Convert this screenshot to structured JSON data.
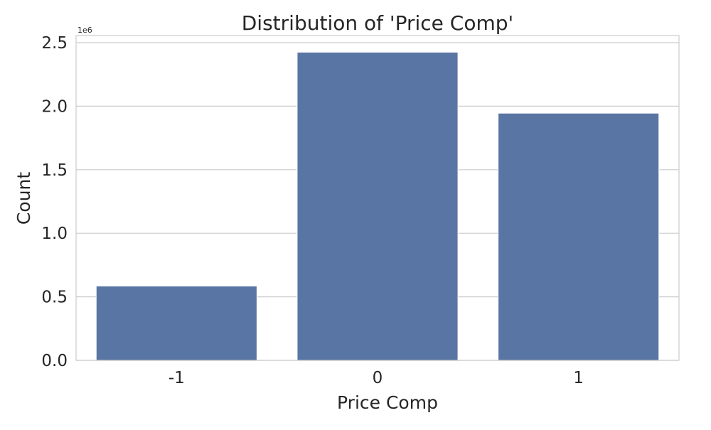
{
  "chart_data": {
    "type": "bar",
    "title": "Distribution of 'Price Comp'",
    "xlabel": "Price Comp",
    "ylabel": "Count",
    "categories": [
      "-1",
      "0",
      "1"
    ],
    "values": [
      585000,
      2425000,
      1945000
    ],
    "ylim": [
      0,
      2580000
    ],
    "scale_label": "1e6",
    "yticks": [
      {
        "value": 0,
        "label": "0.0"
      },
      {
        "value": 500000,
        "label": "0.5"
      },
      {
        "value": 1000000,
        "label": "1.0"
      },
      {
        "value": 1500000,
        "label": "1.5"
      },
      {
        "value": 2000000,
        "label": "2.0"
      },
      {
        "value": 2500000,
        "label": "2.5"
      }
    ],
    "grid": true,
    "colors": {
      "bar": "#5975a4",
      "grid": "#cccccc",
      "text": "#262626",
      "background": "#ffffff"
    }
  }
}
